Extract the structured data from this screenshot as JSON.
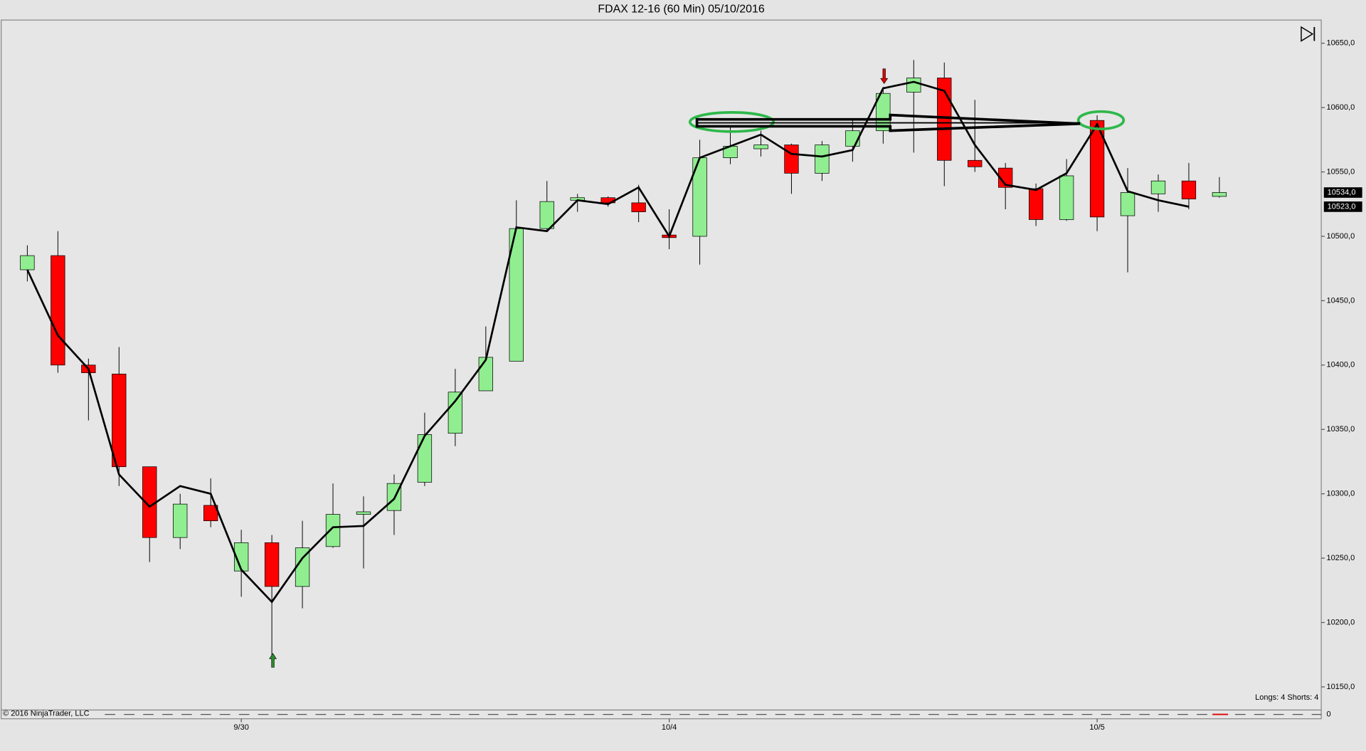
{
  "chart_data": {
    "type": "candlestick",
    "title": "FDAX 12-16 (60 Min)  05/10/2016",
    "copyright": "© 2016 NinjaTrader, LLC",
    "status": "Longs: 4 Shorts: 4",
    "lower_panel_label": "0",
    "categories": [
      null,
      null,
      null,
      null,
      null,
      null,
      null,
      "9/30",
      null,
      null,
      null,
      null,
      null,
      null,
      null,
      null,
      null,
      null,
      null,
      null,
      null,
      "10/4",
      null,
      null,
      null,
      null,
      null,
      null,
      null,
      null,
      null,
      null,
      null,
      null,
      null,
      "10/5",
      null,
      null,
      null,
      null
    ],
    "open": [
      10474,
      10485,
      10400,
      10393,
      10321,
      10266,
      10291,
      10240,
      10262,
      10228,
      10259,
      10284,
      10287,
      10309,
      10347,
      10380,
      10403,
      10506,
      10528,
      10530,
      10526,
      10501,
      10500,
      10561,
      10568,
      10571,
      10549,
      10570,
      10582,
      10612,
      10623,
      10559,
      10553,
      10537,
      10513,
      10590,
      10516,
      10533,
      10543,
      10531
    ],
    "high": [
      10493,
      10504,
      10405,
      10414,
      10321,
      10300,
      10312,
      10272,
      10268,
      10279,
      10308,
      10298,
      10315,
      10363,
      10397,
      10430,
      10528,
      10543,
      10533,
      10531,
      10540,
      10521,
      10575,
      10585,
      10582,
      10572,
      10574,
      10590,
      10616,
      10637,
      10635,
      10606,
      10557,
      10541,
      10560,
      10594,
      10553,
      10548,
      10557,
      10546
    ],
    "low": [
      10465,
      10394,
      10357,
      10306,
      10247,
      10257,
      10274,
      10220,
      10174,
      10211,
      10258,
      10242,
      10268,
      10306,
      10337,
      10380,
      10403,
      10504,
      10519,
      10523,
      10511,
      10490,
      10478,
      10556,
      10562,
      10533,
      10543,
      10558,
      10572,
      10565,
      10539,
      10550,
      10521,
      10508,
      10512,
      10504,
      10472,
      10519,
      10521,
      10530
    ],
    "close": [
      10485,
      10400,
      10394,
      10321,
      10266,
      10292,
      10279,
      10262,
      10228,
      10258,
      10284,
      10286,
      10308,
      10346,
      10379,
      10406,
      10506,
      10527,
      10530,
      10526,
      10519,
      10499,
      10561,
      10570,
      10571,
      10549,
      10571,
      10582,
      10611,
      10623,
      10559,
      10554,
      10538,
      10513,
      10547,
      10515,
      10534,
      10543,
      10529,
      10534
    ],
    "overlay": {
      "color": "#000000",
      "values": [
        10474,
        10423,
        10397,
        10315,
        10290,
        10306,
        10300,
        10241,
        10216,
        10250,
        10274,
        10275,
        10296,
        10345,
        10372,
        10404,
        10507,
        10504,
        10528,
        10525,
        10538,
        10500,
        10561,
        10570,
        10579,
        10564,
        10562,
        10567,
        10615,
        10620,
        10613,
        10571,
        10540,
        10536,
        10549,
        10587,
        10535,
        10528,
        10523,
        null
      ]
    },
    "up_color": "#90ee90",
    "down_color": "#ff0000",
    "ylim": [
      10132,
      10668
    ],
    "yticks": [
      {
        "value": 10150,
        "label": "10150,0"
      },
      {
        "value": 10200,
        "label": "10200,0"
      },
      {
        "value": 10250,
        "label": "10250,0"
      },
      {
        "value": 10300,
        "label": "10300,0"
      },
      {
        "value": 10350,
        "label": "10350,0"
      },
      {
        "value": 10400,
        "label": "10400,0"
      },
      {
        "value": 10450,
        "label": "10450,0"
      },
      {
        "value": 10500,
        "label": "10500,0"
      },
      {
        "value": 10550,
        "label": "10550,0"
      },
      {
        "value": 10600,
        "label": "10600,0"
      },
      {
        "value": 10650,
        "label": "10650,0"
      }
    ],
    "price_markers": [
      {
        "value": 10534,
        "label": "10534,0"
      },
      {
        "value": 10523,
        "label": "10523,0"
      }
    ]
  }
}
